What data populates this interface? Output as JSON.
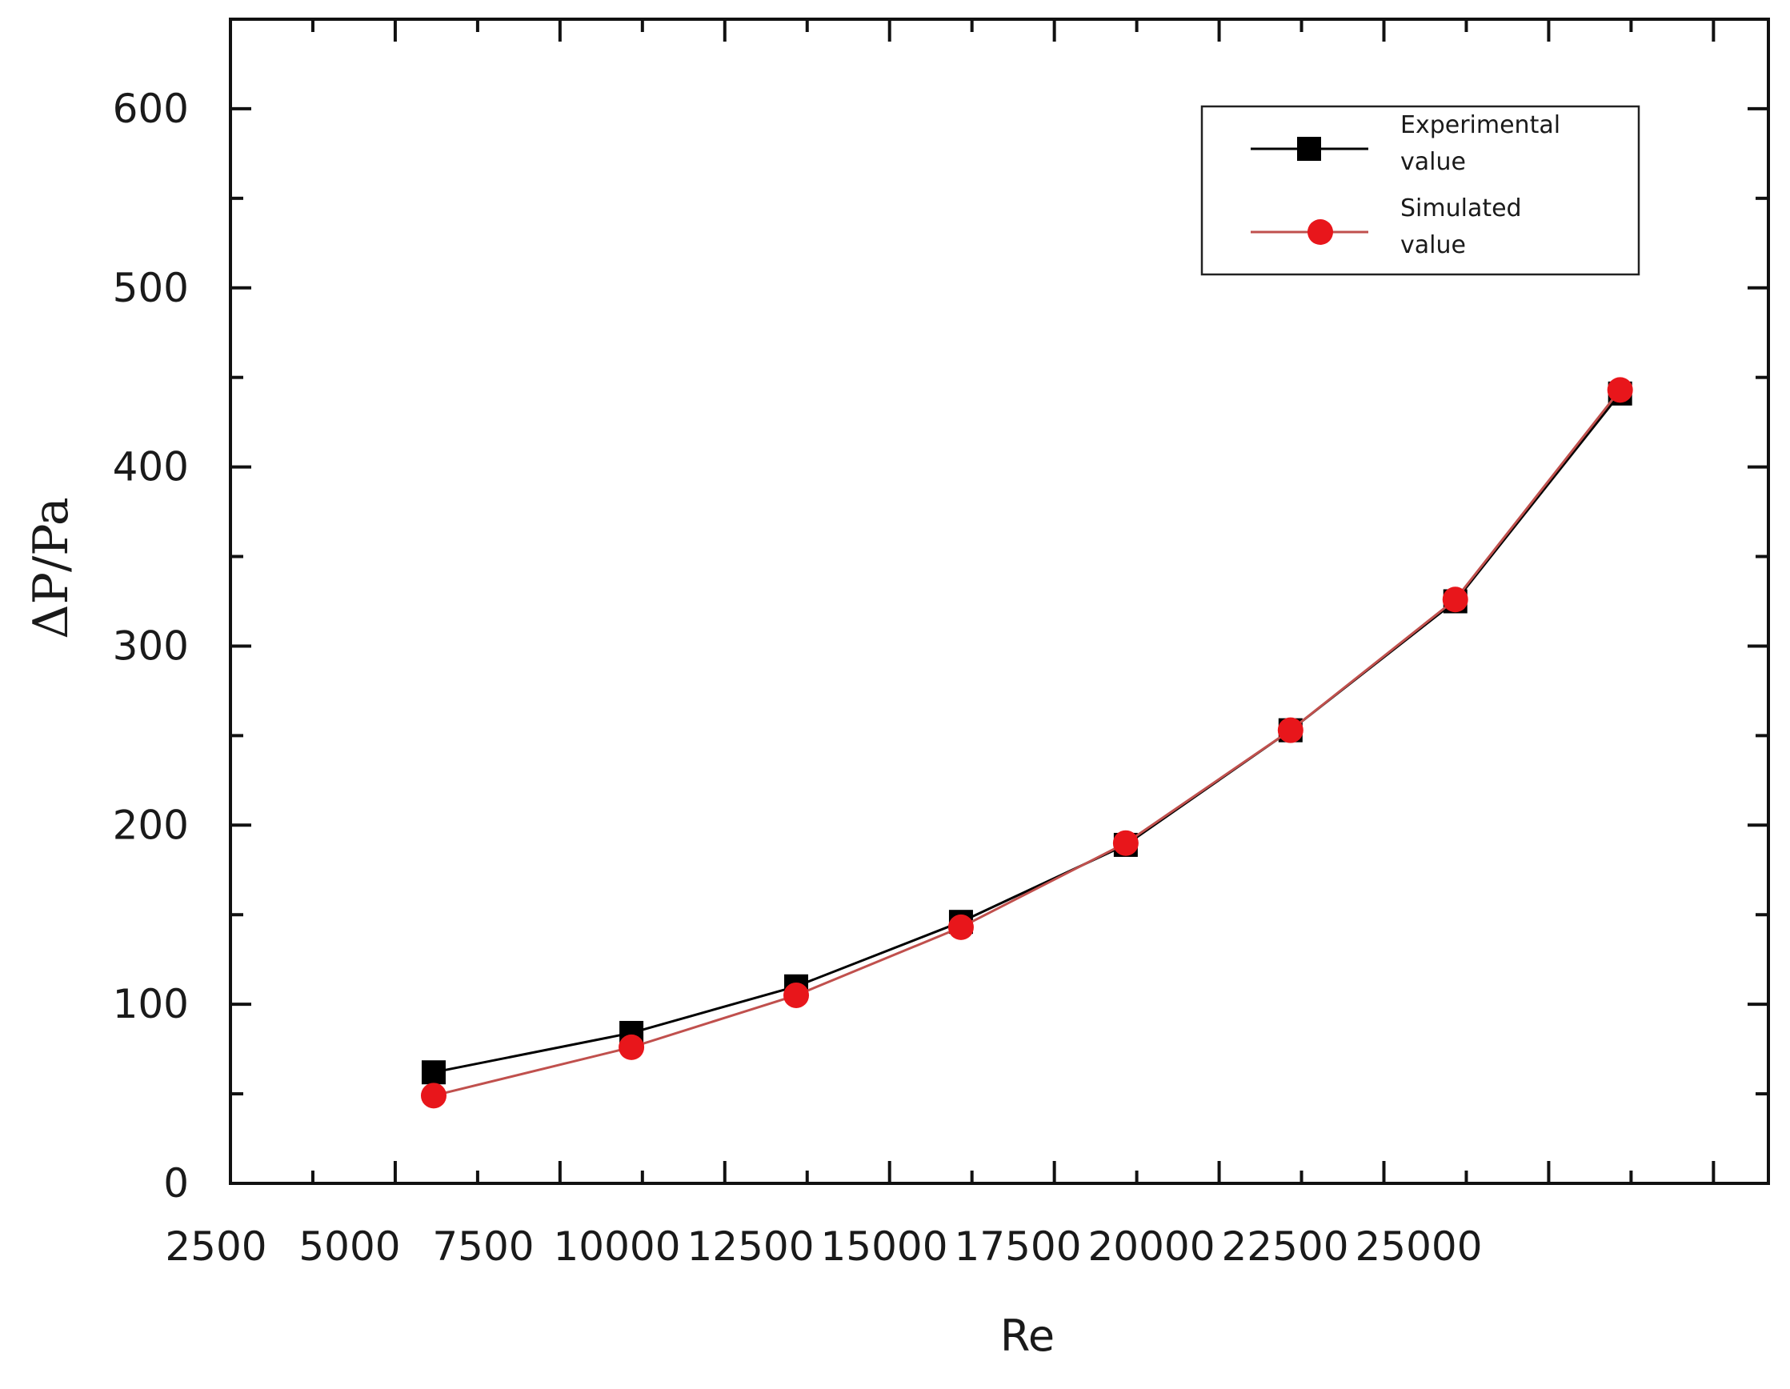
{
  "chart_data": {
    "type": "line",
    "xlabel": "Re",
    "ylabel": "ΔP/Pa",
    "xlim": [
      2500,
      30500
    ],
    "ylim": [
      0,
      650
    ],
    "xticks": [
      2500,
      5000,
      7500,
      10000,
      12500,
      15000,
      17500,
      20000,
      22500,
      25000
    ],
    "yticks": [
      0,
      100,
      200,
      300,
      400,
      500,
      600
    ],
    "grid": false,
    "legend": {
      "placement": "top-right"
    },
    "series": [
      {
        "name": "Experimental value",
        "name_lines": [
          "Experimental",
          "value"
        ],
        "marker": "square",
        "color": "#000000",
        "marker_color": "#000000",
        "x": [
          6200,
          9800,
          12800,
          15800,
          18800,
          21800,
          24800,
          27800
        ],
        "y": [
          62,
          84,
          110,
          146,
          189,
          253,
          325,
          441
        ]
      },
      {
        "name": "Simulated value",
        "name_lines": [
          "Simulated",
          "value"
        ],
        "marker": "circle",
        "color": "#c0504d",
        "marker_color": "#e8161b",
        "x": [
          6200,
          9800,
          12800,
          15800,
          18800,
          21800,
          24800,
          27800
        ],
        "y": [
          49,
          76,
          105,
          143,
          190,
          253,
          326,
          443
        ]
      }
    ]
  }
}
